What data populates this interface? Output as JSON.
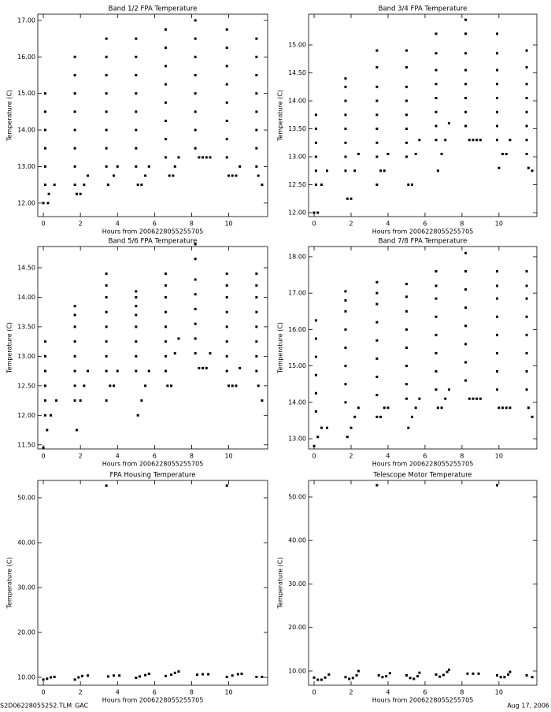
{
  "chart_data": [
    {
      "type": "scatter",
      "title": "Band 1/2 FPA Temperature",
      "x_label": "Hours from 2006228055255705",
      "y_label": "Temperature (C)",
      "color": "#000000",
      "xlim": [
        -0.3,
        12.1
      ],
      "xticks": [
        0,
        2,
        4,
        6,
        8,
        10
      ],
      "ylim": [
        11.63,
        17.17
      ],
      "yticks": [
        {
          "value": 12,
          "label": "12.00"
        },
        {
          "value": 13,
          "label": "13.00"
        },
        {
          "value": 14,
          "label": "14.00"
        },
        {
          "value": 15,
          "label": "15.00"
        },
        {
          "value": 16,
          "label": "16.00"
        },
        {
          "value": 17,
          "label": "17.00"
        }
      ],
      "x": [
        0.1,
        0.1,
        0.1,
        0.1,
        0.1,
        0.1,
        0.0,
        0.25,
        0.3,
        0.6,
        1.7,
        1.7,
        1.7,
        1.7,
        1.7,
        1.7,
        1.7,
        1.7,
        1.8,
        2.0,
        2.2,
        2.4,
        3.4,
        3.4,
        3.4,
        3.4,
        3.4,
        3.4,
        3.4,
        3.4,
        3.5,
        3.8,
        4.0,
        5.0,
        5.0,
        5.0,
        5.0,
        5.0,
        5.0,
        5.0,
        5.0,
        5.1,
        5.3,
        5.5,
        5.7,
        6.6,
        6.6,
        6.6,
        6.6,
        6.6,
        6.6,
        6.6,
        6.6,
        6.8,
        7.0,
        7.1,
        7.3,
        8.2,
        8.2,
        8.2,
        8.2,
        8.2,
        8.2,
        8.2,
        8.2,
        8.4,
        8.6,
        8.8,
        9.0,
        9.9,
        9.9,
        9.9,
        9.9,
        9.9,
        9.9,
        9.9,
        9.9,
        10.0,
        10.2,
        10.4,
        10.6,
        11.5,
        11.5,
        11.5,
        11.5,
        11.5,
        11.5,
        11.5,
        11.5,
        11.6,
        11.8
      ],
      "values": [
        12.5,
        13.0,
        13.5,
        14.0,
        14.5,
        15.0,
        12.0,
        12.0,
        12.25,
        12.5,
        12.5,
        13.0,
        13.5,
        14.0,
        14.5,
        15.0,
        15.5,
        16.0,
        12.25,
        12.25,
        12.5,
        12.75,
        13.0,
        13.5,
        14.0,
        14.5,
        15.0,
        15.5,
        16.0,
        16.5,
        12.5,
        12.75,
        13.0,
        13.0,
        13.5,
        14.0,
        14.5,
        15.0,
        15.5,
        16.0,
        16.5,
        12.5,
        12.5,
        12.75,
        13.0,
        13.25,
        13.75,
        14.25,
        14.75,
        15.25,
        15.75,
        16.25,
        16.75,
        12.75,
        12.75,
        13.0,
        13.25,
        13.5,
        14.0,
        14.5,
        15.0,
        15.5,
        16.0,
        16.5,
        17.0,
        13.25,
        13.25,
        13.25,
        13.25,
        13.25,
        13.75,
        14.25,
        14.75,
        15.25,
        15.75,
        16.25,
        16.75,
        12.75,
        12.75,
        12.75,
        13.0,
        13.0,
        13.5,
        14.0,
        14.5,
        15.0,
        15.5,
        16.0,
        16.5,
        12.75,
        12.5
      ]
    },
    {
      "type": "scatter",
      "title": "Band 3/4 FPA Temperature",
      "x_label": "Hours from 2006228055255705",
      "y_label": "Temperature (C)",
      "color": "#000000",
      "xlim": [
        -0.3,
        12.05
      ],
      "xticks": [
        0,
        2,
        4,
        6,
        8,
        10
      ],
      "ylim": [
        11.93,
        15.55
      ],
      "yticks": [
        {
          "value": 12,
          "label": "12.00"
        },
        {
          "value": 12.5,
          "label": "12.50"
        },
        {
          "value": 13,
          "label": "13.00"
        },
        {
          "value": 13.5,
          "label": "13.50"
        },
        {
          "value": 14,
          "label": "14.00"
        },
        {
          "value": 14.5,
          "label": "14.50"
        },
        {
          "value": 15,
          "label": "15.00"
        }
      ],
      "x": [
        0.1,
        0.1,
        0.1,
        0.1,
        0.1,
        0.1,
        0.0,
        0.2,
        0.4,
        0.7,
        1.7,
        1.7,
        1.7,
        1.7,
        1.7,
        1.7,
        1.7,
        1.7,
        1.8,
        2.0,
        2.2,
        2.4,
        3.4,
        3.4,
        3.4,
        3.4,
        3.4,
        3.4,
        3.4,
        3.4,
        3.4,
        3.6,
        3.8,
        4.0,
        5.0,
        5.0,
        5.0,
        5.0,
        5.0,
        5.0,
        5.0,
        5.0,
        5.1,
        5.3,
        5.5,
        5.7,
        6.6,
        6.6,
        6.6,
        6.6,
        6.6,
        6.6,
        6.6,
        6.6,
        6.7,
        6.9,
        7.1,
        7.3,
        8.2,
        8.2,
        8.2,
        8.2,
        8.2,
        8.2,
        8.2,
        8.2,
        8.4,
        8.6,
        8.8,
        9.0,
        9.9,
        9.9,
        9.9,
        9.9,
        9.9,
        9.9,
        9.9,
        9.9,
        10.0,
        10.2,
        10.4,
        10.6,
        11.5,
        11.5,
        11.5,
        11.5,
        11.5,
        11.5,
        11.5,
        11.5,
        11.6,
        11.8
      ],
      "values": [
        12.5,
        12.75,
        13.0,
        13.25,
        13.5,
        13.75,
        12.0,
        12.0,
        12.5,
        12.75,
        12.75,
        13.0,
        13.25,
        13.5,
        13.75,
        14.0,
        14.25,
        14.4,
        12.25,
        12.25,
        12.75,
        13.05,
        13.0,
        13.25,
        13.5,
        13.75,
        14.0,
        14.25,
        14.6,
        14.9,
        12.5,
        12.75,
        12.75,
        13.05,
        13.0,
        13.25,
        13.5,
        13.75,
        14.0,
        14.25,
        14.6,
        14.9,
        12.5,
        12.5,
        13.05,
        13.3,
        13.3,
        13.55,
        13.8,
        14.05,
        14.3,
        14.55,
        14.85,
        15.2,
        12.75,
        13.05,
        13.3,
        13.6,
        13.55,
        13.8,
        14.05,
        14.3,
        14.55,
        14.85,
        15.2,
        15.45,
        13.3,
        13.3,
        13.3,
        13.3,
        13.3,
        13.55,
        13.8,
        14.05,
        14.3,
        14.55,
        14.85,
        15.2,
        12.8,
        13.05,
        13.05,
        13.3,
        13.05,
        13.3,
        13.55,
        13.8,
        14.05,
        14.3,
        14.6,
        14.9,
        12.8,
        12.75
      ]
    },
    {
      "type": "scatter",
      "title": "Band 5/6 FPA Temperature",
      "x_label": "Hours from 2006228055255705",
      "y_label": "Temperature (C)",
      "color": "#000000",
      "xlim": [
        -0.3,
        12.1
      ],
      "xticks": [
        0,
        2,
        4,
        6,
        8,
        10
      ],
      "ylim": [
        11.43,
        14.86
      ],
      "yticks": [
        {
          "value": 11.5,
          "label": "11.50"
        },
        {
          "value": 12,
          "label": "12.00"
        },
        {
          "value": 12.5,
          "label": "12.50"
        },
        {
          "value": 13,
          "label": "13.00"
        },
        {
          "value": 13.5,
          "label": "13.50"
        },
        {
          "value": 14,
          "label": "14.00"
        },
        {
          "value": 14.5,
          "label": "14.50"
        }
      ],
      "x": [
        0.1,
        0.1,
        0.1,
        0.1,
        0.1,
        0.1,
        0.0,
        0.2,
        0.4,
        0.7,
        1.7,
        1.7,
        1.7,
        1.7,
        1.7,
        1.7,
        1.7,
        1.7,
        1.8,
        2.0,
        2.2,
        2.4,
        3.4,
        3.4,
        3.4,
        3.4,
        3.4,
        3.4,
        3.4,
        3.4,
        3.4,
        3.6,
        3.8,
        4.0,
        5.0,
        5.0,
        5.0,
        5.0,
        5.0,
        5.0,
        5.0,
        5.0,
        5.1,
        5.3,
        5.5,
        5.7,
        6.6,
        6.6,
        6.6,
        6.6,
        6.6,
        6.6,
        6.6,
        6.6,
        6.7,
        6.9,
        7.1,
        7.3,
        8.2,
        8.2,
        8.2,
        8.2,
        8.2,
        8.2,
        8.2,
        8.2,
        8.4,
        8.6,
        8.8,
        9.0,
        9.9,
        9.9,
        9.9,
        9.9,
        9.9,
        9.9,
        9.9,
        9.9,
        10.0,
        10.2,
        10.4,
        10.6,
        11.5,
        11.5,
        11.5,
        11.5,
        11.5,
        11.5,
        11.5,
        11.5,
        11.6,
        11.8
      ],
      "values": [
        12.0,
        12.25,
        12.5,
        12.75,
        13.0,
        13.25,
        11.45,
        11.75,
        12.0,
        12.25,
        12.25,
        12.5,
        12.75,
        13.0,
        13.25,
        13.5,
        13.7,
        13.85,
        11.75,
        12.25,
        12.5,
        12.75,
        12.75,
        13.0,
        13.25,
        13.5,
        13.75,
        14.0,
        14.2,
        14.4,
        12.25,
        12.5,
        12.5,
        12.75,
        12.75,
        13.0,
        13.25,
        13.5,
        13.7,
        13.85,
        14.0,
        14.1,
        12.0,
        12.25,
        12.5,
        12.75,
        12.75,
        13.0,
        13.25,
        13.5,
        13.75,
        14.0,
        14.2,
        14.4,
        12.5,
        12.5,
        13.05,
        13.3,
        13.05,
        13.3,
        13.55,
        13.8,
        14.05,
        14.3,
        14.65,
        14.9,
        12.8,
        12.8,
        12.8,
        13.05,
        12.75,
        13.0,
        13.25,
        13.5,
        13.75,
        14.0,
        14.2,
        14.4,
        12.5,
        12.5,
        12.5,
        12.8,
        12.75,
        13.0,
        13.25,
        13.5,
        13.75,
        14.0,
        14.2,
        14.4,
        12.5,
        12.25
      ]
    },
    {
      "type": "scatter",
      "title": "Band 7/8 FPA Temperature",
      "x_label": "Hours from 2006228055255705",
      "y_label": "Temperature (C)",
      "color": "#000000",
      "xlim": [
        -0.3,
        12.05
      ],
      "xticks": [
        0,
        2,
        4,
        6,
        8,
        10
      ],
      "ylim": [
        12.72,
        18.28
      ],
      "yticks": [
        {
          "value": 13,
          "label": "13.00"
        },
        {
          "value": 14,
          "label": "14.00"
        },
        {
          "value": 15,
          "label": "15.00"
        },
        {
          "value": 16,
          "label": "16.00"
        },
        {
          "value": 17,
          "label": "17.00"
        },
        {
          "value": 18,
          "label": "18.00"
        }
      ],
      "x": [
        0.1,
        0.1,
        0.1,
        0.1,
        0.1,
        0.1,
        0.0,
        0.2,
        0.4,
        0.7,
        1.7,
        1.7,
        1.7,
        1.7,
        1.7,
        1.7,
        1.7,
        1.7,
        1.8,
        2.0,
        2.2,
        2.4,
        3.4,
        3.4,
        3.4,
        3.4,
        3.4,
        3.4,
        3.4,
        3.4,
        3.4,
        3.6,
        3.8,
        4.0,
        5.0,
        5.0,
        5.0,
        5.0,
        5.0,
        5.0,
        5.0,
        5.0,
        5.1,
        5.3,
        5.5,
        5.7,
        6.6,
        6.6,
        6.6,
        6.6,
        6.6,
        6.6,
        6.6,
        6.6,
        6.7,
        6.9,
        7.1,
        7.3,
        8.2,
        8.2,
        8.2,
        8.2,
        8.2,
        8.2,
        8.2,
        8.2,
        8.4,
        8.6,
        8.8,
        9.0,
        9.9,
        9.9,
        9.9,
        9.9,
        9.9,
        9.9,
        9.9,
        9.9,
        10.0,
        10.2,
        10.4,
        10.6,
        11.5,
        11.5,
        11.5,
        11.5,
        11.5,
        11.5,
        11.5,
        11.5,
        11.6,
        11.8
      ],
      "values": [
        13.75,
        14.25,
        14.75,
        15.25,
        15.75,
        16.25,
        12.8,
        13.05,
        13.3,
        13.3,
        14.0,
        14.5,
        15.0,
        15.5,
        16.0,
        16.5,
        16.8,
        17.05,
        13.05,
        13.3,
        13.6,
        13.85,
        14.2,
        14.7,
        15.2,
        15.7,
        16.2,
        16.7,
        17.0,
        17.3,
        13.6,
        13.6,
        13.85,
        13.85,
        14.1,
        14.5,
        15.0,
        15.5,
        16.0,
        16.5,
        16.9,
        17.25,
        13.3,
        13.6,
        13.85,
        14.1,
        14.35,
        14.85,
        15.35,
        15.85,
        16.35,
        16.85,
        17.2,
        17.6,
        13.85,
        13.85,
        14.1,
        14.35,
        14.6,
        15.1,
        15.6,
        16.1,
        16.6,
        17.1,
        17.6,
        18.1,
        14.1,
        14.1,
        14.1,
        14.1,
        14.35,
        14.85,
        15.35,
        15.85,
        16.35,
        16.85,
        17.2,
        17.6,
        13.85,
        13.85,
        13.85,
        13.85,
        14.35,
        14.85,
        15.35,
        15.85,
        16.35,
        16.85,
        17.2,
        17.6,
        13.85,
        13.6
      ]
    },
    {
      "type": "scatter",
      "title": "FPA Housing Temperature",
      "x_label": "Hours from 2006228055255705",
      "y_label": "Temperature (C)",
      "color": "#000000",
      "xlim": [
        -0.3,
        12.1
      ],
      "xticks": [
        0,
        2,
        4,
        6,
        8,
        10
      ],
      "ylim": [
        8.25,
        53.86
      ],
      "yticks": [
        {
          "value": 10,
          "label": "10.00"
        },
        {
          "value": 20,
          "label": "20.00"
        },
        {
          "value": 30,
          "label": "30.00"
        },
        {
          "value": 40,
          "label": "40.00"
        },
        {
          "value": 50,
          "label": "50.00"
        }
      ],
      "x": [
        0.0,
        0.2,
        0.4,
        0.6,
        1.7,
        1.9,
        2.1,
        2.4,
        3.4,
        3.5,
        3.8,
        4.1,
        5.0,
        5.2,
        5.5,
        5.7,
        6.6,
        6.9,
        7.1,
        7.3,
        8.3,
        8.6,
        8.9,
        9.9,
        9.9,
        10.2,
        10.5,
        10.7,
        11.5,
        11.8
      ],
      "values": [
        9.5,
        9.7,
        10.0,
        10.1,
        9.5,
        10.0,
        10.3,
        10.4,
        52.7,
        10.2,
        10.4,
        10.4,
        9.9,
        10.2,
        10.5,
        10.8,
        10.3,
        10.6,
        11.0,
        11.3,
        10.6,
        10.7,
        10.7,
        52.7,
        10.1,
        10.4,
        10.7,
        10.8,
        10.1,
        10.1
      ]
    },
    {
      "type": "scatter",
      "title": "Telescope Motor Temperature",
      "x_label": "Hours from 2006228055255705",
      "y_label": "Temperature (C)",
      "color": "#000000",
      "xlim": [
        -0.3,
        12.05
      ],
      "xticks": [
        0,
        2,
        4,
        6,
        8,
        10
      ],
      "ylim": [
        6.74,
        53.8
      ],
      "yticks": [
        {
          "value": 10,
          "label": "10.00"
        },
        {
          "value": 20,
          "label": "20.00"
        },
        {
          "value": 30,
          "label": "30.00"
        },
        {
          "value": 40,
          "label": "40.00"
        },
        {
          "value": 50,
          "label": "50.00"
        }
      ],
      "x": [
        0.0,
        0.2,
        0.4,
        0.6,
        0.8,
        1.7,
        1.9,
        2.1,
        2.3,
        2.4,
        3.4,
        3.5,
        3.7,
        3.9,
        4.1,
        5.0,
        5.2,
        5.4,
        5.6,
        5.7,
        6.6,
        6.8,
        7.0,
        7.2,
        7.3,
        8.3,
        8.6,
        8.9,
        9.9,
        9.9,
        10.1,
        10.3,
        10.5,
        10.6,
        11.5,
        11.8
      ],
      "values": [
        8.5,
        8.0,
        8.0,
        8.5,
        9.2,
        8.6,
        8.2,
        8.4,
        9.0,
        10.0,
        52.7,
        9.0,
        8.6,
        8.8,
        9.5,
        9.0,
        8.4,
        8.2,
        8.8,
        9.6,
        9.2,
        8.7,
        9.1,
        9.8,
        10.3,
        9.4,
        9.4,
        9.4,
        52.7,
        9.0,
        8.6,
        8.6,
        9.2,
        9.8,
        9.0,
        8.6
      ]
    }
  ],
  "footer": {
    "left": "S2D06228055252.TLM_GAC",
    "right": "Aug 17, 2006"
  }
}
